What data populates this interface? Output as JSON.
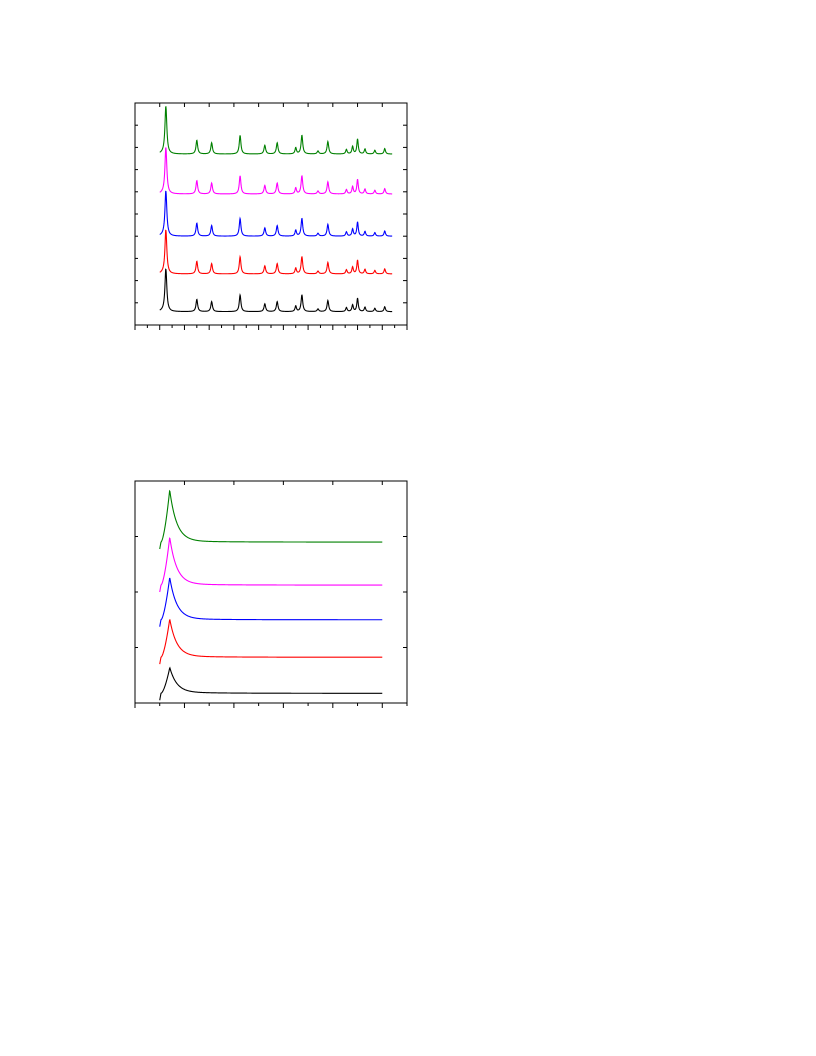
{
  "chart_data": [
    {
      "type": "line",
      "title": "",
      "xlabel": "",
      "ylabel": "",
      "xlim": [
        0,
        22
      ],
      "ylim": [
        0,
        10
      ],
      "tick_labels_shown": false,
      "x_major_ticks": [
        0,
        2,
        4,
        6,
        8,
        10,
        12,
        14,
        16,
        18,
        20,
        22
      ],
      "x_minor_ticks": [
        1,
        3,
        5,
        7,
        9,
        11,
        13,
        15,
        17,
        19,
        21
      ],
      "y_ticks": [
        1,
        2,
        3,
        4,
        5,
        6,
        7,
        8,
        9
      ],
      "x_range": [
        2,
        20.8
      ],
      "baselines": [
        0.6,
        2.3,
        4.0,
        5.9,
        7.7
      ],
      "peaks": [
        {
          "x": 2.5,
          "h": 1.9,
          "w": 0.09
        },
        {
          "x": 5.0,
          "h": 0.55,
          "w": 0.08
        },
        {
          "x": 6.2,
          "h": 0.45,
          "w": 0.08
        },
        {
          "x": 8.5,
          "h": 0.75,
          "w": 0.08
        },
        {
          "x": 10.5,
          "h": 0.35,
          "w": 0.08
        },
        {
          "x": 11.5,
          "h": 0.45,
          "w": 0.08
        },
        {
          "x": 13.0,
          "h": 0.25,
          "w": 0.07
        },
        {
          "x": 13.5,
          "h": 0.75,
          "w": 0.08
        },
        {
          "x": 14.8,
          "h": 0.12,
          "w": 0.08
        },
        {
          "x": 15.6,
          "h": 0.5,
          "w": 0.08
        },
        {
          "x": 17.1,
          "h": 0.18,
          "w": 0.07
        },
        {
          "x": 17.6,
          "h": 0.3,
          "w": 0.07
        },
        {
          "x": 18.0,
          "h": 0.6,
          "w": 0.07
        },
        {
          "x": 18.6,
          "h": 0.2,
          "w": 0.07
        },
        {
          "x": 19.4,
          "h": 0.15,
          "w": 0.07
        },
        {
          "x": 20.2,
          "h": 0.22,
          "w": 0.07
        }
      ],
      "series": [
        {
          "color": "#000000"
        },
        {
          "color": "#ff0000"
        },
        {
          "color": "#0000ff"
        },
        {
          "color": "#ff00ff"
        },
        {
          "color": "#008000"
        }
      ],
      "grid": false
    },
    {
      "type": "line",
      "title": "",
      "xlabel": "",
      "ylabel": "",
      "xlim": [
        0,
        11
      ],
      "ylim": [
        0,
        8
      ],
      "tick_labels_shown": false,
      "x_major_ticks": [
        0,
        2,
        4,
        6,
        8,
        10
      ],
      "x_minor_ticks": [
        1,
        3,
        5,
        7,
        9,
        11
      ],
      "y_ticks": [
        2,
        4,
        6
      ],
      "x_range": [
        1.0,
        10.0
      ],
      "baselines": [
        0.35,
        1.65,
        3.0,
        4.25,
        5.8
      ],
      "peak": {
        "x": 1.4,
        "rise_start": 1.05
      },
      "series": [
        {
          "color": "#000000",
          "h": 0.9
        },
        {
          "color": "#ff0000",
          "h": 1.35
        },
        {
          "color": "#0000ff",
          "h": 1.5
        },
        {
          "color": "#ff00ff",
          "h": 1.7
        },
        {
          "color": "#008000",
          "h": 1.85
        }
      ],
      "grid": false
    }
  ]
}
